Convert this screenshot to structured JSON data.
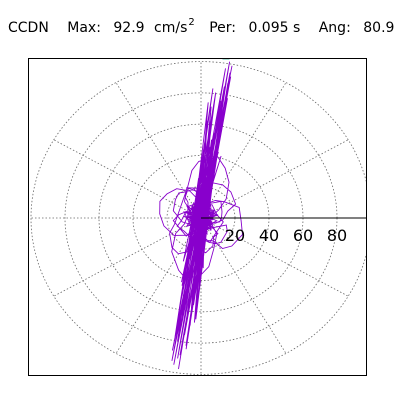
{
  "header": {
    "station": "CCDN",
    "max_label": "Max:",
    "max_value": "92.9",
    "max_unit": "cm/s",
    "max_exp": "2",
    "per_label": "Per:",
    "per_value": "0.095 s",
    "ang_label": "Ang:",
    "ang_value": "80.9"
  },
  "colors": {
    "trace": "#8800cc",
    "marker": "#009977",
    "grid": "#666666",
    "axis": "#000000"
  },
  "chart_data": {
    "type": "polar-particle-motion",
    "radial_ticks": [
      "20",
      "40",
      "60",
      "80"
    ],
    "radial_values": [
      20,
      40,
      60,
      80,
      100
    ],
    "spoke_angles_deg": [
      0,
      30,
      60,
      90,
      120,
      150,
      180,
      210,
      240,
      270,
      300,
      330
    ],
    "grid": true,
    "peak": {
      "magnitude": 92.9,
      "angle_deg": 80.9
    }
  }
}
